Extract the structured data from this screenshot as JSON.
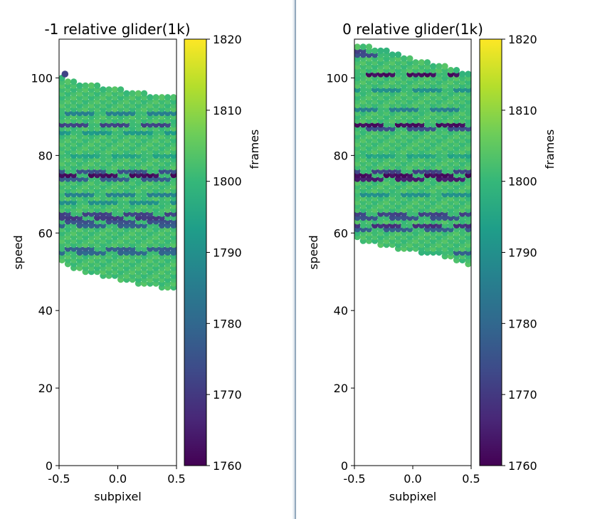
{
  "chart_data": [
    {
      "type": "scatter",
      "title": "-1 relative glider(1k)",
      "xlabel": "subpixel",
      "ylabel": "speed",
      "xlim": [
        -0.5,
        0.5
      ],
      "ylim": [
        0,
        110
      ],
      "xticks": [
        "-0.5",
        "0.0",
        "0.5"
      ],
      "yticks": [
        "0",
        "20",
        "40",
        "60",
        "80",
        "100"
      ],
      "colorbar": {
        "label": "frames",
        "range": [
          1760,
          1820
        ],
        "ticks": [
          "1760",
          "1770",
          "1780",
          "1790",
          "1800",
          "1810",
          "1820"
        ],
        "colormap": "viridis"
      },
      "x_values": [
        -0.5,
        -0.45,
        -0.4,
        -0.35,
        -0.3,
        -0.25,
        -0.2,
        -0.15,
        -0.1,
        -0.05,
        0.0,
        0.05,
        0.1,
        0.15,
        0.2,
        0.25,
        0.3,
        0.35,
        0.4,
        0.45
      ],
      "speed_top": [
        100,
        99,
        99,
        98,
        98,
        98,
        98,
        97,
        97,
        97,
        97,
        96,
        96,
        96,
        96,
        95,
        95,
        95,
        95,
        95
      ],
      "speed_bottom": [
        53,
        52,
        51,
        51,
        50,
        50,
        50,
        49,
        49,
        49,
        48,
        48,
        48,
        47,
        47,
        47,
        47,
        46,
        46,
        46
      ],
      "outliers": [
        {
          "x": -0.45,
          "y": 101,
          "frames": 1772
        }
      ],
      "banded_speeds": [
        {
          "y": 88,
          "frames": 1772
        },
        {
          "y": 75,
          "frames": 1762
        },
        {
          "y": 76,
          "frames": 1775
        },
        {
          "y": 74,
          "frames": 1778
        },
        {
          "y": 65,
          "frames": 1772
        },
        {
          "y": 64,
          "frames": 1770
        },
        {
          "y": 63,
          "frames": 1775
        },
        {
          "y": 62,
          "frames": 1778
        },
        {
          "y": 56,
          "frames": 1778
        },
        {
          "y": 55,
          "frames": 1780
        },
        {
          "y": 91,
          "frames": 1786
        },
        {
          "y": 70,
          "frames": 1786
        },
        {
          "y": 86,
          "frames": 1792
        },
        {
          "y": 80,
          "frames": 1795
        },
        {
          "y": 68,
          "frames": 1790
        }
      ],
      "typical_frames": 1802
    },
    {
      "type": "scatter",
      "title": "0 relative glider(1k)",
      "xlabel": "subpixel",
      "ylabel": "speed",
      "xlim": [
        -0.5,
        0.5
      ],
      "ylim": [
        0,
        110
      ],
      "xticks": [
        "-0.5",
        "0.0",
        "0.5"
      ],
      "yticks": [
        "0",
        "20",
        "40",
        "60",
        "80",
        "100"
      ],
      "colorbar": {
        "label": "frames",
        "range": [
          1760,
          1820
        ],
        "ticks": [
          "1760",
          "1770",
          "1780",
          "1790",
          "1800",
          "1810",
          "1820"
        ],
        "colormap": "viridis"
      },
      "x_values": [
        -0.5,
        -0.45,
        -0.4,
        -0.35,
        -0.3,
        -0.25,
        -0.2,
        -0.15,
        -0.1,
        -0.05,
        0.0,
        0.05,
        0.1,
        0.15,
        0.2,
        0.25,
        0.3,
        0.35,
        0.4,
        0.45
      ],
      "speed_top": [
        108,
        108,
        108,
        107,
        107,
        107,
        106,
        106,
        105,
        105,
        104,
        104,
        104,
        103,
        103,
        103,
        102,
        102,
        101,
        101
      ],
      "speed_bottom": [
        59,
        58,
        58,
        58,
        57,
        57,
        57,
        56,
        56,
        56,
        56,
        55,
        55,
        55,
        55,
        54,
        54,
        53,
        53,
        52
      ],
      "outliers": [],
      "banded_speeds": [
        {
          "y": 107,
          "frames": 1772
        },
        {
          "y": 106,
          "frames": 1774
        },
        {
          "y": 101,
          "frames": 1762
        },
        {
          "y": 88,
          "frames": 1762
        },
        {
          "y": 87,
          "frames": 1775
        },
        {
          "y": 76,
          "frames": 1772
        },
        {
          "y": 75,
          "frames": 1762
        },
        {
          "y": 74,
          "frames": 1765
        },
        {
          "y": 65,
          "frames": 1772
        },
        {
          "y": 64,
          "frames": 1775
        },
        {
          "y": 62,
          "frames": 1768
        },
        {
          "y": 61,
          "frames": 1778
        },
        {
          "y": 55,
          "frames": 1778
        },
        {
          "y": 92,
          "frames": 1786
        },
        {
          "y": 97,
          "frames": 1790
        },
        {
          "y": 80,
          "frames": 1795
        },
        {
          "y": 70,
          "frames": 1790
        }
      ],
      "typical_frames": 1802
    }
  ]
}
